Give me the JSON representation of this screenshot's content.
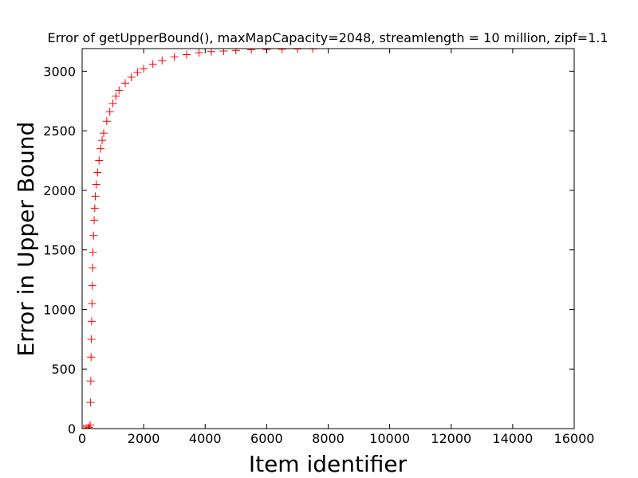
{
  "chart_data": {
    "type": "scatter",
    "title": "Error of getUpperBound(), maxMapCapacity=2048, streamlength = 10 million, zipf=1.1",
    "x_label": "Item identifier",
    "y_label": "Error in Upper Bound",
    "color": "#ff0000",
    "marker": "+",
    "x": [
      50,
      100,
      150,
      200,
      220,
      240,
      260,
      270,
      280,
      290,
      300,
      310,
      320,
      330,
      340,
      350,
      370,
      390,
      410,
      430,
      460,
      500,
      550,
      600,
      650,
      700,
      800,
      900,
      1000,
      1100,
      1200,
      1400,
      1600,
      1800,
      2000,
      2300,
      2600,
      3000,
      3400,
      3800,
      4200,
      4600,
      5000,
      5500,
      6000,
      6500,
      7000,
      7500
    ],
    "y": [
      0,
      0,
      0,
      0,
      10,
      0,
      30,
      220,
      400,
      600,
      750,
      900,
      1050,
      1200,
      1350,
      1480,
      1620,
      1750,
      1850,
      1950,
      2050,
      2150,
      2250,
      2350,
      2420,
      2480,
      2580,
      2660,
      2730,
      2790,
      2840,
      2900,
      2950,
      2990,
      3020,
      3060,
      3090,
      3120,
      3140,
      3155,
      3165,
      3170,
      3175,
      3180,
      3183,
      3185,
      3187,
      3188
    ],
    "xlim": [
      0,
      16000
    ],
    "ylim": [
      0,
      3190
    ],
    "xticks": [
      0,
      2000,
      4000,
      6000,
      8000,
      10000,
      12000,
      14000,
      16000
    ],
    "yticks": [
      0,
      500,
      1000,
      1500,
      2000,
      2500,
      3000
    ]
  }
}
